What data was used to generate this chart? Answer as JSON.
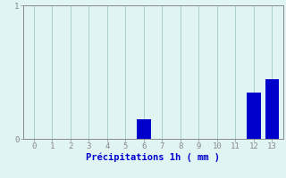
{
  "hours": [
    0,
    1,
    2,
    3,
    4,
    5,
    6,
    7,
    8,
    9,
    10,
    11,
    12,
    13
  ],
  "values": [
    0,
    0,
    0,
    0,
    0,
    0,
    0.15,
    0,
    0,
    0,
    0,
    0,
    0.35,
    0.45
  ],
  "bar_color": "#0000cc",
  "background_color": "#e0f4f4",
  "grid_color": "#a8cece",
  "axis_color": "#888888",
  "text_color": "#0000cc",
  "xlabel": "Précipitations 1h ( mm )",
  "ylim": [
    0,
    1.0
  ],
  "xlim": [
    -0.6,
    13.6
  ],
  "yticks": [
    0,
    1
  ],
  "xticks": [
    0,
    1,
    2,
    3,
    4,
    5,
    6,
    7,
    8,
    9,
    10,
    11,
    12,
    13
  ],
  "bar_width": 0.75,
  "tick_fontsize": 6.5,
  "xlabel_fontsize": 7.5
}
